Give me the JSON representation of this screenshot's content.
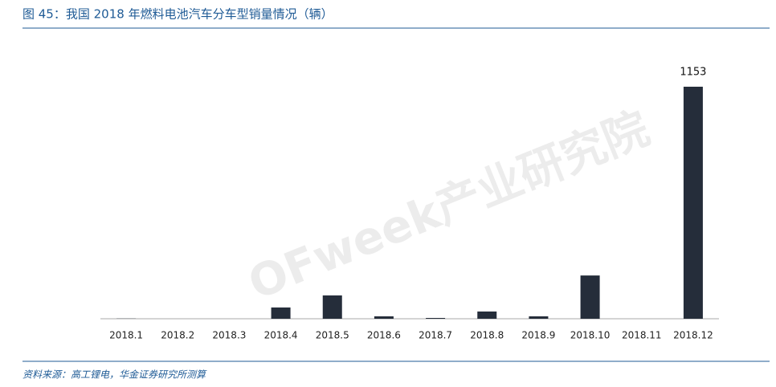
{
  "chart_data": {
    "type": "bar",
    "title": "图 45：我国 2018 年燃料电池汽车分车型销量情况（辆）",
    "categories": [
      "2018.1",
      "2018.2",
      "2018.3",
      "2018.4",
      "2018.5",
      "2018.6",
      "2018.7",
      "2018.8",
      "2018.9",
      "2018.10",
      "2018.11",
      "2018.12"
    ],
    "values": [
      1,
      0,
      0,
      56,
      116,
      12,
      4,
      36,
      12,
      215,
      0,
      1153
    ],
    "value_labels": [
      null,
      null,
      null,
      null,
      null,
      null,
      null,
      null,
      null,
      null,
      null,
      "1153"
    ],
    "color": "#252d3a",
    "source": "资料来源：高工锂电，华金证券研究所测算",
    "watermark": "OFweek产业研究院"
  }
}
